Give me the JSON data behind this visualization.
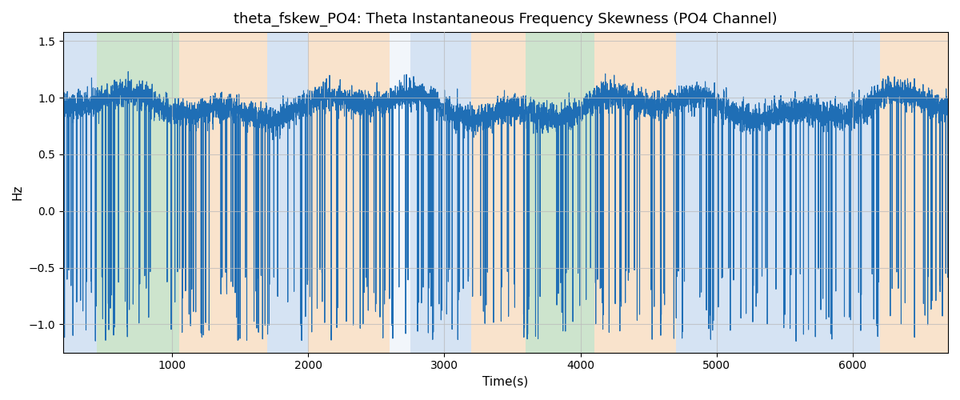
{
  "title": "theta_fskew_PO4: Theta Instantaneous Frequency Skewness (PO4 Channel)",
  "xlabel": "Time(s)",
  "ylabel": "Hz",
  "xlim": [
    200,
    6700
  ],
  "ylim": [
    -1.25,
    1.58
  ],
  "yticks": [
    -1.0,
    -0.5,
    0.0,
    0.5,
    1.0,
    1.5
  ],
  "xticks": [
    1000,
    2000,
    3000,
    4000,
    5000,
    6000
  ],
  "line_color": "#1f6eb5",
  "line_width": 0.8,
  "bg_color": "#ffffff",
  "grid_color": "#bbbbbb",
  "bands": [
    {
      "xmin": 200,
      "xmax": 450,
      "color": "#adc8e8",
      "alpha": 0.5
    },
    {
      "xmin": 450,
      "xmax": 1050,
      "color": "#90c490",
      "alpha": 0.45
    },
    {
      "xmin": 1050,
      "xmax": 1700,
      "color": "#f5c99a",
      "alpha": 0.5
    },
    {
      "xmin": 1700,
      "xmax": 2000,
      "color": "#adc8e8",
      "alpha": 0.5
    },
    {
      "xmin": 2000,
      "xmax": 2600,
      "color": "#f5c99a",
      "alpha": 0.5
    },
    {
      "xmin": 2600,
      "xmax": 2750,
      "color": "#adc8e8",
      "alpha": 0.15
    },
    {
      "xmin": 2750,
      "xmax": 3200,
      "color": "#adc8e8",
      "alpha": 0.5
    },
    {
      "xmin": 3200,
      "xmax": 3600,
      "color": "#f5c99a",
      "alpha": 0.5
    },
    {
      "xmin": 3600,
      "xmax": 4100,
      "color": "#90c490",
      "alpha": 0.45
    },
    {
      "xmin": 4100,
      "xmax": 4700,
      "color": "#f5c99a",
      "alpha": 0.5
    },
    {
      "xmin": 4700,
      "xmax": 6200,
      "color": "#adc8e8",
      "alpha": 0.5
    },
    {
      "xmin": 6200,
      "xmax": 6700,
      "color": "#f5c99a",
      "alpha": 0.5
    }
  ],
  "seed": 42,
  "n_points": 6500,
  "t_start": 200,
  "t_end": 6700
}
